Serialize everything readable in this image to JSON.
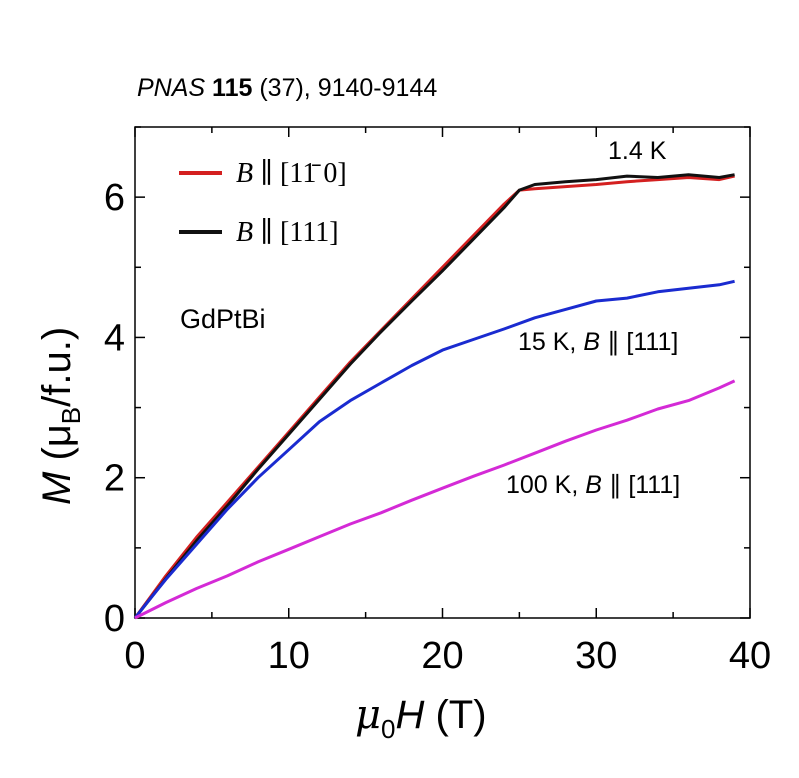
{
  "citation": {
    "journal": "PNAS",
    "volume": "115",
    "rest": "(37), 9140-9144"
  },
  "chart_data": {
    "type": "line",
    "xlabel": "μ0H (T)",
    "ylabel": "M (μB/f.u.)",
    "xlim": [
      0,
      40
    ],
    "ylim": [
      0,
      7
    ],
    "xticks": [
      0,
      10,
      20,
      30,
      40
    ],
    "yticks": [
      0,
      2,
      4,
      6
    ],
    "sample_label": "GdPtBi",
    "series": [
      {
        "name": "B ∥ [1 1̄ 0]",
        "color": "#d42020",
        "x": [
          0,
          1,
          2,
          4,
          6,
          8,
          10,
          12,
          14,
          16,
          18,
          20,
          22,
          24,
          25,
          26,
          28,
          30,
          32,
          34,
          36,
          38,
          39
        ],
        "y": [
          0,
          0.3,
          0.6,
          1.15,
          1.65,
          2.15,
          2.65,
          3.15,
          3.65,
          4.1,
          4.55,
          5.0,
          5.45,
          5.9,
          6.1,
          6.12,
          6.15,
          6.18,
          6.22,
          6.25,
          6.28,
          6.25,
          6.3
        ]
      },
      {
        "name": "B ∥ [111]",
        "color": "#111111",
        "x": [
          0,
          1,
          2,
          4,
          6,
          8,
          10,
          12,
          14,
          16,
          18,
          20,
          22,
          24,
          25,
          26,
          28,
          30,
          32,
          34,
          36,
          38,
          39
        ],
        "y": [
          0,
          0.28,
          0.56,
          1.1,
          1.6,
          2.12,
          2.62,
          3.12,
          3.62,
          4.08,
          4.52,
          4.95,
          5.4,
          5.85,
          6.1,
          6.18,
          6.22,
          6.25,
          6.3,
          6.28,
          6.32,
          6.28,
          6.32
        ]
      },
      {
        "name": "15 K, B ∥ [111]",
        "color": "#1a2bd0",
        "x": [
          0,
          1,
          2,
          4,
          6,
          8,
          10,
          12,
          14,
          16,
          18,
          20,
          22,
          24,
          26,
          28,
          30,
          32,
          34,
          36,
          38,
          39
        ],
        "y": [
          0,
          0.28,
          0.55,
          1.05,
          1.55,
          2.0,
          2.4,
          2.8,
          3.1,
          3.35,
          3.6,
          3.82,
          3.97,
          4.12,
          4.28,
          4.4,
          4.52,
          4.56,
          4.65,
          4.7,
          4.75,
          4.8
        ]
      },
      {
        "name": "100 K, B ∥ [111]",
        "color": "#d42ad6",
        "x": [
          0,
          2,
          4,
          6,
          8,
          10,
          12,
          14,
          16,
          18,
          20,
          22,
          24,
          26,
          28,
          30,
          32,
          34,
          36,
          38,
          39
        ],
        "y": [
          0,
          0.22,
          0.42,
          0.6,
          0.8,
          0.98,
          1.16,
          1.34,
          1.5,
          1.68,
          1.85,
          2.02,
          2.18,
          2.35,
          2.52,
          2.68,
          2.82,
          2.98,
          3.1,
          3.28,
          3.38
        ]
      }
    ],
    "annotations": [
      "1.4 K",
      "15 K, B ∥ [111]",
      "100 K, B ∥ [111]"
    ]
  }
}
